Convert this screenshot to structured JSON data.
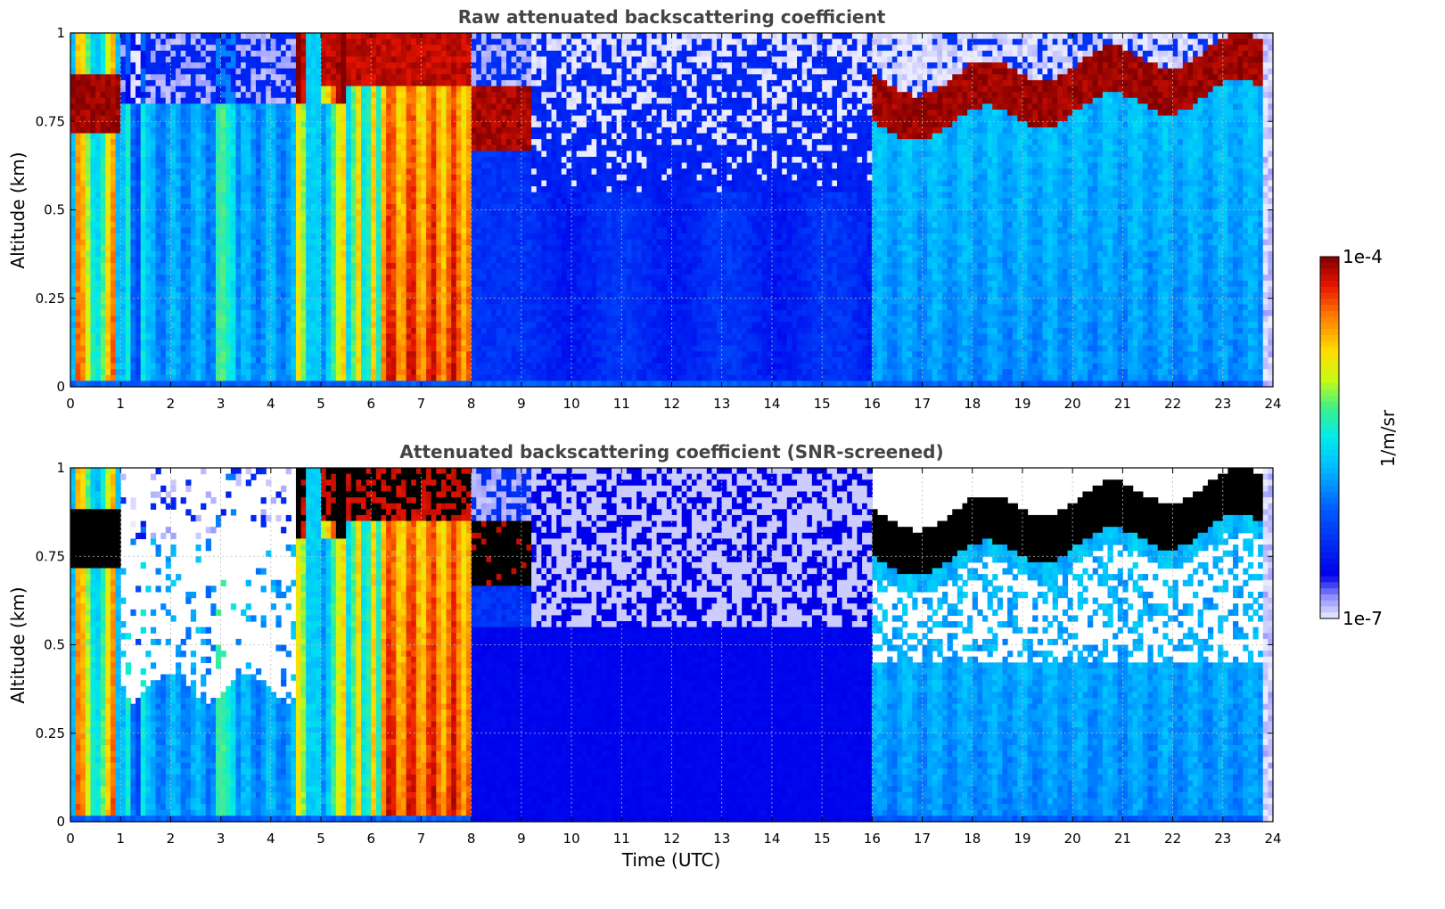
{
  "colors": {
    "background": "#ffffff",
    "grid": "#bbbbbb",
    "title": "#444444",
    "saturated_screened": "#000000"
  },
  "colorbar": {
    "max_label": "1e-4",
    "min_label": "1e-7",
    "unit_label": "1/m/sr",
    "colormap": "jet-like (white → blue → cyan → green → yellow → red → dark red)"
  },
  "shared": {
    "xlabel": "Time (UTC)",
    "ylabel": "Altitude (km)"
  },
  "chart_data": [
    {
      "type": "heatmap",
      "title": "Raw attenuated backscattering coefficient",
      "xlabel": "",
      "ylabel": "Altitude (km)",
      "xlim": [
        0,
        24
      ],
      "ylim": [
        0,
        1
      ],
      "xticks": [
        0,
        1,
        2,
        3,
        4,
        5,
        6,
        7,
        8,
        9,
        10,
        11,
        12,
        13,
        14,
        15,
        16,
        17,
        18,
        19,
        20,
        21,
        22,
        23,
        24
      ],
      "yticks": [
        0,
        0.25,
        0.5,
        0.75,
        1
      ],
      "ytick_labels": [
        "0",
        "0.25",
        "0.5",
        "0.75",
        "1"
      ],
      "scale": "log",
      "clim": [
        1e-07,
        0.0001
      ],
      "grid": true,
      "segments": [
        {
          "t0": 0.0,
          "t1": 1.0,
          "feature": "cloud layer 0.7-0.9 km, strong signal column"
        },
        {
          "t0": 1.0,
          "t1": 4.5,
          "feature": "moderate aerosol, noisy above 0.8 km"
        },
        {
          "t0": 4.5,
          "t1": 8.0,
          "feature": "thick cloud / precipitation, very high values"
        },
        {
          "t0": 8.0,
          "t1": 9.2,
          "feature": "cloud layer ~0.65-0.85 km"
        },
        {
          "t0": 9.2,
          "t1": 16.0,
          "feature": "low backscatter, noisy upper levels"
        },
        {
          "t0": 16.0,
          "t1": 23.8,
          "feature": "cloud layer 0.7-0.95 km, rising in time"
        }
      ]
    },
    {
      "type": "heatmap",
      "title": "Attenuated backscattering coefficient (SNR-screened)",
      "xlabel": "Time (UTC)",
      "ylabel": "Altitude (km)",
      "xlim": [
        0,
        24
      ],
      "ylim": [
        0,
        1
      ],
      "xticks": [
        0,
        1,
        2,
        3,
        4,
        5,
        6,
        7,
        8,
        9,
        10,
        11,
        12,
        13,
        14,
        15,
        16,
        17,
        18,
        19,
        20,
        21,
        22,
        23,
        24
      ],
      "yticks": [
        0,
        0.25,
        0.5,
        0.75,
        1
      ],
      "ytick_labels": [
        "0",
        "0.25",
        "0.5",
        "0.75",
        "1"
      ],
      "scale": "log",
      "clim": [
        1e-07,
        0.0001
      ],
      "grid": true,
      "segments": [
        {
          "t0": 0.0,
          "t1": 1.0,
          "feature": "saturated cloud layer shown black"
        },
        {
          "t0": 1.0,
          "t1": 4.5,
          "feature": "screened above ~0.35-0.45 km"
        },
        {
          "t0": 4.5,
          "t1": 8.0,
          "feature": "thick cloud, black saturation near top"
        },
        {
          "t0": 8.0,
          "t1": 9.2,
          "feature": "black cloud layer ~0.7-0.85 km"
        },
        {
          "t0": 9.2,
          "t1": 16.0,
          "feature": "blue low signal, screened speckle above 0.5 km"
        },
        {
          "t0": 16.0,
          "t1": 23.8,
          "feature": "black cloud layer 0.7-0.9 km, screened below"
        }
      ]
    }
  ]
}
